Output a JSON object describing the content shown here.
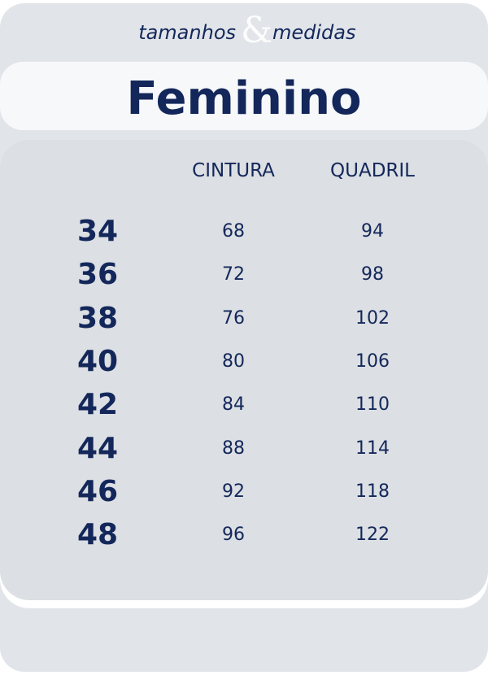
{
  "header": {
    "subtitle_left": "tamanhos",
    "ampersand": "&",
    "subtitle_right": "medidas",
    "title": "Feminino"
  },
  "table": {
    "columns": [
      "CINTURA",
      "QUADRIL"
    ],
    "rows": [
      [
        34,
        68,
        94
      ],
      [
        36,
        72,
        98
      ],
      [
        38,
        76,
        102
      ],
      [
        40,
        80,
        106
      ],
      [
        42,
        84,
        110
      ],
      [
        44,
        88,
        114
      ],
      [
        46,
        92,
        118
      ],
      [
        48,
        96,
        122
      ]
    ]
  }
}
